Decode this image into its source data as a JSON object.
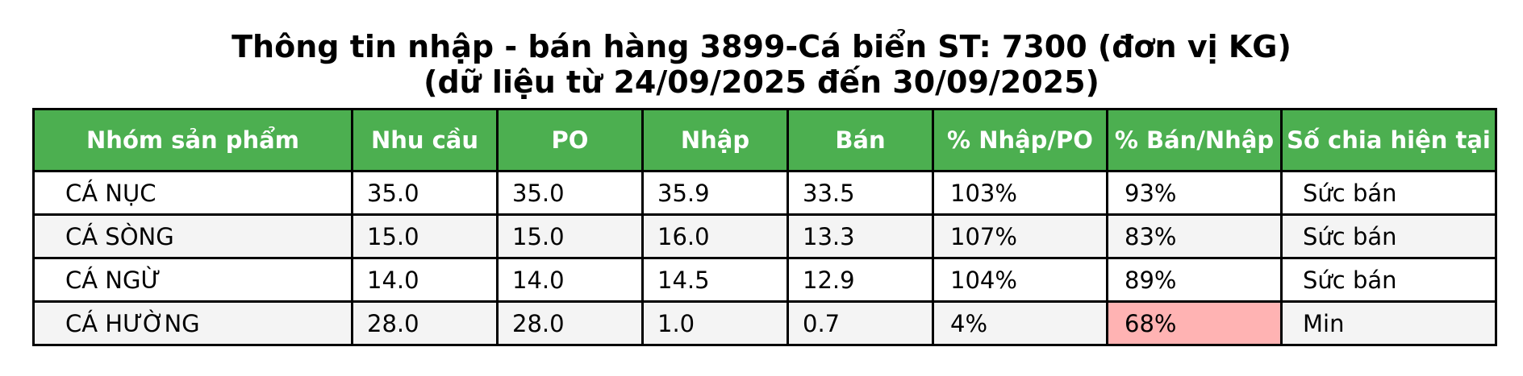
{
  "title": {
    "line1": "Thông tin nhập - bán hàng 3899-Cá biển ST: 7300 (đơn vị KG)",
    "line2": "(dữ liệu từ 24/09/2025 đến 30/09/2025)"
  },
  "table": {
    "headers": [
      "Nhóm sản phẩm",
      "Nhu cầu",
      "PO",
      "Nhập",
      "Bán",
      "% Nhập/PO",
      "% Bán/Nhập",
      "Số chia hiện tại"
    ],
    "rows": [
      [
        "CÁ NỤC",
        "35.0",
        "35.0",
        "35.9",
        "33.5",
        "103%",
        "93%",
        "Sức bán"
      ],
      [
        "CÁ SÒNG",
        "15.0",
        "15.0",
        "16.0",
        "13.3",
        "107%",
        "83%",
        "Sức bán"
      ],
      [
        "CÁ NGỪ",
        "14.0",
        "14.0",
        "14.5",
        "12.9",
        "104%",
        "89%",
        "Sức bán"
      ],
      [
        "CÁ HƯỜNG",
        "28.0",
        "28.0",
        "1.0",
        "0.7",
        "4%",
        "68%",
        "Min"
      ]
    ]
  },
  "colors": {
    "header_bg": "#4caf50",
    "header_text": "#ffffff",
    "alt_row_bg": "#f4f4f4",
    "alert_bg": "#ffb3b3"
  }
}
